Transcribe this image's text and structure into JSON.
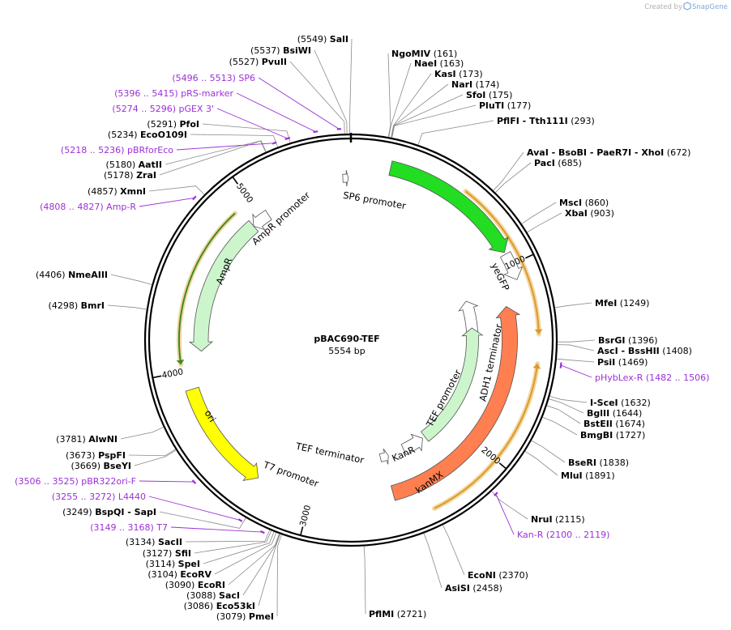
{
  "watermark": {
    "prefix": "Created by",
    "brand": "SnapGene"
  },
  "plasmid": {
    "name": "pBAC690-TEF",
    "size_label": "5554 bp",
    "length": 5554
  },
  "colors": {
    "backbone": "#000000",
    "primer": "#9b30d6",
    "leader_line": "#8a8a8a",
    "ampr": "#ccf5cc",
    "yegfp": "#22dd22",
    "kanmx": "#ff7f50",
    "ori": "#ffff00",
    "kanr": "#ccf5cc",
    "promoter_fill": "#ffffff",
    "orf_ampr": "#3c8a2a",
    "orf_other": "#d99a2b",
    "orf_halo": "#f5d6a0"
  },
  "ticks": [
    {
      "pos": 1000,
      "label": "1000"
    },
    {
      "pos": 2000,
      "label": "2000"
    },
    {
      "pos": 3000,
      "label": "3000"
    },
    {
      "pos": 4000,
      "label": "4000"
    },
    {
      "pos": 5000,
      "label": "5000"
    }
  ],
  "sites": [
    {
      "pos": 5549,
      "name": "SalI",
      "coord": "(5549)"
    },
    {
      "pos": 5537,
      "name": "BsiWI",
      "coord": "(5537)"
    },
    {
      "pos": 5527,
      "name": "PvuII",
      "coord": "(5527)"
    },
    {
      "pos": 5291,
      "name": "PfoI",
      "coord": "(5291)"
    },
    {
      "pos": 5234,
      "name": "EcoO109I",
      "coord": "(5234)"
    },
    {
      "pos": 5180,
      "name": "AatII",
      "coord": "(5180)"
    },
    {
      "pos": 5178,
      "name": "ZraI",
      "coord": "(5178)"
    },
    {
      "pos": 4857,
      "name": "XmnI",
      "coord": "(4857)"
    },
    {
      "pos": 4406,
      "name": "NmeAIII",
      "coord": "(4406)"
    },
    {
      "pos": 4298,
      "name": "BmrI",
      "coord": "(4298)"
    },
    {
      "pos": 3781,
      "name": "AlwNI",
      "coord": "(3781)"
    },
    {
      "pos": 3673,
      "name": "PspFI",
      "coord": "(3673)"
    },
    {
      "pos": 3669,
      "name": "BseYI",
      "coord": "(3669)"
    },
    {
      "pos": 3249,
      "name": "BspQI  -  SapI",
      "coord": "(3249)"
    },
    {
      "pos": 3134,
      "name": "SacII",
      "coord": "(3134)"
    },
    {
      "pos": 3127,
      "name": "SfiI",
      "coord": "(3127)"
    },
    {
      "pos": 3114,
      "name": "SpeI",
      "coord": "(3114)"
    },
    {
      "pos": 3104,
      "name": "EcoRV",
      "coord": "(3104)"
    },
    {
      "pos": 3090,
      "name": "EcoRI",
      "coord": "(3090)"
    },
    {
      "pos": 3088,
      "name": "SacI",
      "coord": "(3088)"
    },
    {
      "pos": 3086,
      "name": "Eco53kI",
      "coord": "(3086)"
    },
    {
      "pos": 3079,
      "name": "PmeI",
      "coord": "(3079)"
    },
    {
      "pos": 161,
      "name": "NgoMIV",
      "coord": "(161)"
    },
    {
      "pos": 163,
      "name": "NaeI",
      "coord": "(163)"
    },
    {
      "pos": 173,
      "name": "KasI",
      "coord": "(173)"
    },
    {
      "pos": 174,
      "name": "NarI",
      "coord": "(174)"
    },
    {
      "pos": 175,
      "name": "SfoI",
      "coord": "(175)"
    },
    {
      "pos": 177,
      "name": "PluTI",
      "coord": "(177)"
    },
    {
      "pos": 293,
      "name": "PflFI  -  Tth111I",
      "coord": "(293)"
    },
    {
      "pos": 672,
      "name": "AvaI  -  BsoBI  -  PaeR7I  -  XhoI",
      "coord": "(672)"
    },
    {
      "pos": 685,
      "name": "PacI",
      "coord": "(685)"
    },
    {
      "pos": 860,
      "name": "MscI",
      "coord": "(860)"
    },
    {
      "pos": 903,
      "name": "XbaI",
      "coord": "(903)"
    },
    {
      "pos": 1249,
      "name": "MfeI",
      "coord": "(1249)"
    },
    {
      "pos": 1396,
      "name": "BsrGI",
      "coord": "(1396)"
    },
    {
      "pos": 1408,
      "name": "AscI  -  BssHII",
      "coord": "(1408)"
    },
    {
      "pos": 1469,
      "name": "PsiI",
      "coord": "(1469)"
    },
    {
      "pos": 1632,
      "name": "I-SceI",
      "coord": "(1632)"
    },
    {
      "pos": 1644,
      "name": "BglII",
      "coord": "(1644)"
    },
    {
      "pos": 1674,
      "name": "BstEII",
      "coord": "(1674)"
    },
    {
      "pos": 1727,
      "name": "BmgBI",
      "coord": "(1727)"
    },
    {
      "pos": 1838,
      "name": "BseRI",
      "coord": "(1838)"
    },
    {
      "pos": 1891,
      "name": "MluI",
      "coord": "(1891)"
    },
    {
      "pos": 2115,
      "name": "NruI",
      "coord": "(2115)"
    },
    {
      "pos": 2370,
      "name": "EcoNI",
      "coord": "(2370)"
    },
    {
      "pos": 2458,
      "name": "AsiSI",
      "coord": "(2458)"
    },
    {
      "pos": 2721,
      "name": "PflMI",
      "coord": "(2721)"
    }
  ],
  "primers": [
    {
      "start": 5496,
      "end": 5513,
      "range": "(5496 .. 5513)",
      "name": "SP6"
    },
    {
      "start": 5396,
      "end": 5415,
      "range": "(5396 .. 5415)",
      "name": "pRS-marker"
    },
    {
      "start": 5274,
      "end": 5296,
      "range": "(5274 .. 5296)",
      "name": "pGEX 3'"
    },
    {
      "start": 5218,
      "end": 5236,
      "range": "(5218 .. 5236)",
      "name": "pBRforEco"
    },
    {
      "start": 4808,
      "end": 4827,
      "range": "(4808 .. 4827)",
      "name": "Amp-R"
    },
    {
      "start": 3506,
      "end": 3525,
      "range": "(3506 .. 3525)",
      "name": "pBR322ori-F"
    },
    {
      "start": 3255,
      "end": 3272,
      "range": "(3255 .. 3272)",
      "name": "L4440"
    },
    {
      "start": 3149,
      "end": 3168,
      "range": "(3149 .. 3168)",
      "name": "T7"
    },
    {
      "start": 1482,
      "end": 1506,
      "range": "(1482 .. 1506)",
      "name": "pHybLex-R"
    },
    {
      "start": 2100,
      "end": 2119,
      "range": "(2100 .. 2119)",
      "name": "Kan-R"
    }
  ],
  "features": [
    {
      "name": "yeGFP",
      "type": "cds",
      "start": 200,
      "end": 930,
      "dir": 1,
      "fill": "#22dd22"
    },
    {
      "name": "ADH1 terminator",
      "type": "terminator",
      "start": 940,
      "end": 1080,
      "dir": 1,
      "fill": "#ffffff"
    },
    {
      "name": "kanMX",
      "type": "cds",
      "start": 1200,
      "end": 2540,
      "dir": -1,
      "fill": "#ff7f50"
    },
    {
      "name": "TEF promoter",
      "type": "promoter",
      "start": 1100,
      "end": 1370,
      "dir": -1,
      "fill": "#ffffff"
    },
    {
      "name": "KanR",
      "type": "cds",
      "start": 1300,
      "end": 2200,
      "dir": -1,
      "fill": "#ccf5cc"
    },
    {
      "name": "TEF terminator",
      "type": "terminator",
      "start": 2220,
      "end": 2380,
      "dir": -1,
      "fill": "#ffffff"
    },
    {
      "name": "T7 promoter",
      "type": "promoter",
      "start": 2500,
      "end": 2560,
      "dir": -1,
      "fill": "#ffffff"
    },
    {
      "name": "ori",
      "type": "rep_origin",
      "start": 3300,
      "end": 3900,
      "dir": -1,
      "fill": "#ffff00"
    },
    {
      "name": "AmpR",
      "type": "cds",
      "start": 4100,
      "end": 4930,
      "dir": -1,
      "fill": "#ccf5cc"
    },
    {
      "name": "AmpR promoter",
      "type": "promoter",
      "start": 4930,
      "end": 5040,
      "dir": -1,
      "fill": "#ffffff"
    },
    {
      "name": "SP6 promoter",
      "type": "promoter",
      "start": 5510,
      "end": 5540,
      "dir": 1,
      "fill": "#ffffff"
    }
  ],
  "orfs": [
    {
      "start": 580,
      "end": 1360,
      "dir": 1,
      "color": "#d99a2b"
    },
    {
      "start": 1500,
      "end": 2370,
      "dir": -1,
      "color": "#d99a2b"
    },
    {
      "start": 4040,
      "end": 4900,
      "dir": -1,
      "color": "#3c8a2a"
    }
  ]
}
